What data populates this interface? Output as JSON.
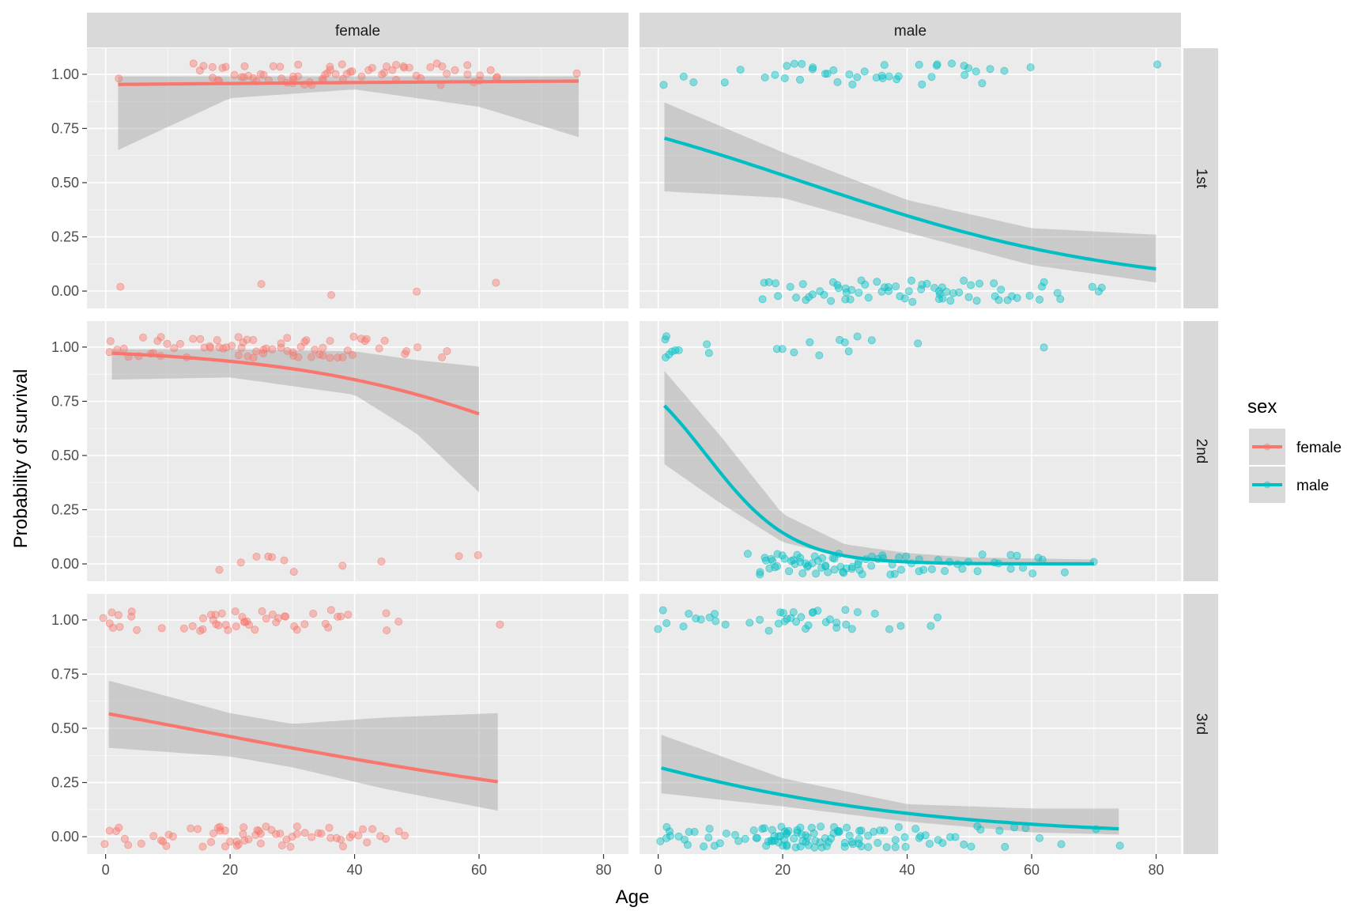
{
  "chart_data": {
    "type": "scatter",
    "xlabel": "Age",
    "ylabel": "Probability of survival",
    "xlim": [
      -3,
      84
    ],
    "ylim": [
      -0.08,
      1.12
    ],
    "x_ticks": [
      0,
      20,
      40,
      60,
      80
    ],
    "y_ticks": [
      0,
      0.25,
      0.5,
      0.75,
      1
    ],
    "x_tick_labels": [
      "0",
      "20",
      "40",
      "60",
      "80"
    ],
    "y_tick_labels": [
      "0.00",
      "0.25",
      "0.50",
      "0.75",
      "1.00"
    ],
    "grid": true,
    "facet_cols": [
      "female",
      "male"
    ],
    "facet_rows": [
      "1st",
      "2nd",
      "3rd"
    ],
    "legend": {
      "title": "sex",
      "position": "right",
      "items": [
        {
          "label": "female",
          "color": "#F8766D"
        },
        {
          "label": "male",
          "color": "#00BFC4"
        }
      ]
    },
    "colors": {
      "female": "#F8766D",
      "male": "#00BFC4",
      "ribbon": "#999999",
      "panel": "#EBEBEB",
      "strip": "#D9D9D9"
    },
    "panels": [
      {
        "row": "1st",
        "col": "female",
        "curve_x": [
          2,
          76
        ],
        "curve": {
          "b0": 3.0,
          "b1": 0.0056
        },
        "ribbon_at": [
          [
            2,
            0.65,
            0.99
          ],
          [
            20,
            0.89,
            0.99
          ],
          [
            40,
            0.93,
            0.99
          ],
          [
            60,
            0.85,
            0.99
          ],
          [
            76,
            0.71,
            0.99
          ]
        ],
        "survived_ages": [
          2,
          14,
          15,
          16,
          17,
          17,
          18,
          18,
          19,
          19,
          21,
          22,
          22,
          22,
          23,
          24,
          24,
          25,
          25,
          26,
          27,
          28,
          28,
          29,
          30,
          30,
          30,
          31,
          31,
          32,
          33,
          33,
          35,
          35,
          35,
          36,
          36,
          36,
          37,
          38,
          38,
          39,
          39,
          40,
          41,
          42,
          43,
          44,
          45,
          45,
          46,
          47,
          47,
          48,
          48,
          49,
          50,
          51,
          52,
          53,
          54,
          54,
          55,
          56,
          58,
          58,
          59,
          60,
          60,
          62,
          63,
          63,
          76
        ],
        "died_ages": [
          2,
          25,
          36,
          50,
          63
        ]
      },
      {
        "row": "1st",
        "col": "male",
        "curve_x": [
          1,
          80
        ],
        "curve": {
          "b0": 0.91,
          "b1": -0.0385
        },
        "ribbon_at": [
          [
            1,
            0.46,
            0.87
          ],
          [
            20,
            0.43,
            0.64
          ],
          [
            40,
            0.27,
            0.42
          ],
          [
            60,
            0.12,
            0.29
          ],
          [
            80,
            0.04,
            0.26
          ]
        ],
        "survived_ages": [
          1,
          4,
          6,
          11,
          13,
          17,
          19,
          20,
          21,
          22,
          23,
          23,
          25,
          25,
          27,
          27,
          28,
          29,
          31,
          31,
          32,
          33,
          35,
          36,
          36,
          36,
          37,
          38,
          39,
          42,
          42,
          44,
          45,
          45,
          47,
          49,
          49,
          50,
          51,
          52,
          53,
          56,
          60,
          80
        ],
        "died_ages": [
          17,
          17,
          18,
          19,
          19,
          21,
          22,
          23,
          24,
          24,
          25,
          26,
          27,
          28,
          28,
          29,
          29,
          30,
          30,
          30,
          31,
          31,
          32,
          33,
          33,
          34,
          35,
          36,
          36,
          37,
          37,
          38,
          39,
          40,
          40,
          41,
          41,
          42,
          42,
          43,
          44,
          45,
          45,
          45,
          46,
          46,
          46,
          47,
          47,
          48,
          49,
          50,
          50,
          51,
          52,
          54,
          54,
          55,
          55,
          56,
          57,
          58,
          60,
          61,
          62,
          62,
          64,
          65,
          70,
          71,
          71
        ]
      },
      {
        "row": "2nd",
        "col": "female",
        "curve_x": [
          1,
          60
        ],
        "curve": {
          "b0": 3.58,
          "b1": -0.0462
        },
        "ribbon_at": [
          [
            1,
            0.85,
            0.99
          ],
          [
            20,
            0.86,
            0.99
          ],
          [
            40,
            0.78,
            0.98
          ],
          [
            50,
            0.6,
            0.94
          ],
          [
            60,
            0.33,
            0.91
          ]
        ],
        "survived_ages": [
          1,
          1,
          2,
          3,
          4,
          5,
          6,
          7,
          8,
          8,
          9,
          9,
          10,
          11,
          12,
          13,
          14,
          15,
          16,
          17,
          17,
          18,
          18,
          19,
          19,
          20,
          21,
          21,
          22,
          22,
          23,
          23,
          24,
          24,
          24,
          25,
          25,
          26,
          27,
          28,
          28,
          29,
          29,
          30,
          30,
          31,
          31,
          32,
          32,
          33,
          34,
          34,
          35,
          35,
          36,
          36,
          37,
          38,
          39,
          40,
          40,
          41,
          42,
          42,
          44,
          45,
          48,
          48,
          50,
          54,
          55
        ],
        "died_ages": [
          18,
          22,
          24,
          26,
          27,
          29,
          30,
          38,
          44,
          57,
          60
        ]
      },
      {
        "row": "2nd",
        "col": "male",
        "curve_x": [
          1,
          70
        ],
        "curve": {
          "b0": 1.14,
          "b1": -0.1462
        },
        "ribbon_at": [
          [
            1,
            0.46,
            0.89
          ],
          [
            10,
            0.28,
            0.59
          ],
          [
            20,
            0.1,
            0.23
          ],
          [
            30,
            0.03,
            0.09
          ],
          [
            40,
            0.01,
            0.05
          ],
          [
            50,
            0.0,
            0.03
          ],
          [
            70,
            0.0,
            0.02
          ]
        ],
        "survived_ages": [
          1,
          1,
          1,
          2,
          2,
          3,
          3,
          8,
          8,
          19,
          20,
          22,
          24,
          26,
          29,
          30,
          31,
          32,
          34,
          42,
          62
        ],
        "died_ages": [
          14,
          16,
          16,
          17,
          17,
          18,
          18,
          18,
          19,
          19,
          19,
          20,
          20,
          21,
          21,
          22,
          22,
          22,
          23,
          23,
          23,
          24,
          24,
          24,
          25,
          25,
          25,
          26,
          26,
          26,
          27,
          27,
          27,
          28,
          28,
          28,
          29,
          29,
          30,
          30,
          30,
          31,
          31,
          32,
          32,
          32,
          33,
          33,
          34,
          34,
          35,
          36,
          36,
          37,
          38,
          38,
          39,
          39,
          40,
          41,
          42,
          42,
          43,
          44,
          45,
          46,
          47,
          48,
          49,
          50,
          51,
          52,
          54,
          55,
          57,
          57,
          58,
          59,
          60,
          61,
          62,
          65,
          70
        ]
      },
      {
        "row": "3rd",
        "col": "female",
        "curve_x": [
          0.5,
          63
        ],
        "curve": {
          "b0": 0.28,
          "b1": -0.0216
        },
        "ribbon_at": [
          [
            0.5,
            0.41,
            0.72
          ],
          [
            20,
            0.37,
            0.57
          ],
          [
            30,
            0.32,
            0.52
          ],
          [
            45,
            0.22,
            0.55
          ],
          [
            63,
            0.12,
            0.57
          ]
        ],
        "survived_ages": [
          0,
          1,
          1,
          1,
          2,
          2,
          4,
          4,
          5,
          9,
          13,
          14,
          15,
          16,
          16,
          17,
          17,
          18,
          18,
          18,
          19,
          19,
          20,
          21,
          21,
          22,
          22,
          22,
          23,
          23,
          24,
          25,
          26,
          27,
          27,
          28,
          29,
          29,
          30,
          31,
          32,
          33,
          35,
          36,
          36,
          37,
          38,
          39,
          45,
          45,
          47,
          63
        ],
        "died_ages": [
          0,
          1,
          2,
          2,
          3,
          4,
          6,
          8,
          9,
          9,
          10,
          10,
          11,
          14,
          15,
          16,
          17,
          17,
          18,
          18,
          18,
          19,
          19,
          20,
          21,
          21,
          21,
          22,
          22,
          22,
          23,
          24,
          24,
          25,
          25,
          25,
          26,
          27,
          27,
          28,
          28,
          29,
          30,
          30,
          31,
          31,
          32,
          33,
          34,
          35,
          36,
          36,
          37,
          38,
          38,
          39,
          40,
          41,
          41,
          42,
          43,
          44,
          45,
          47,
          48
        ]
      },
      {
        "row": "3rd",
        "col": "male",
        "curve_x": [
          0.5,
          74
        ],
        "curve": {
          "b0": -0.75,
          "b1": -0.0341
        },
        "ribbon_at": [
          [
            0.5,
            0.2,
            0.47
          ],
          [
            20,
            0.14,
            0.27
          ],
          [
            40,
            0.07,
            0.15
          ],
          [
            60,
            0.02,
            0.13
          ],
          [
            74,
            0.01,
            0.13
          ]
        ],
        "survived_ages": [
          0,
          1,
          1,
          4,
          5,
          6,
          7,
          8,
          9,
          9,
          11,
          15,
          16,
          18,
          19,
          20,
          20,
          20,
          21,
          21,
          22,
          22,
          23,
          24,
          24,
          25,
          25,
          26,
          27,
          28,
          29,
          29,
          30,
          30,
          31,
          32,
          35,
          37,
          39,
          44,
          45
        ],
        "died_ages": [
          0,
          1,
          1,
          2,
          2,
          3,
          4,
          5,
          5,
          6,
          7,
          8,
          8,
          9,
          10,
          11,
          12,
          13,
          14,
          15,
          16,
          16,
          17,
          17,
          17,
          18,
          18,
          18,
          18,
          19,
          19,
          19,
          19,
          20,
          20,
          20,
          20,
          20,
          21,
          21,
          21,
          21,
          21,
          22,
          22,
          22,
          22,
          23,
          23,
          23,
          23,
          24,
          24,
          24,
          24,
          25,
          25,
          25,
          25,
          26,
          26,
          26,
          27,
          27,
          27,
          28,
          28,
          28,
          29,
          29,
          29,
          30,
          30,
          30,
          31,
          31,
          31,
          32,
          32,
          32,
          33,
          33,
          34,
          34,
          35,
          35,
          36,
          36,
          37,
          38,
          38,
          39,
          40,
          40,
          41,
          42,
          42,
          43,
          44,
          45,
          46,
          47,
          48,
          49,
          50,
          51,
          52,
          55,
          56,
          57,
          59,
          61,
          65,
          70,
          74
        ]
      }
    ]
  }
}
